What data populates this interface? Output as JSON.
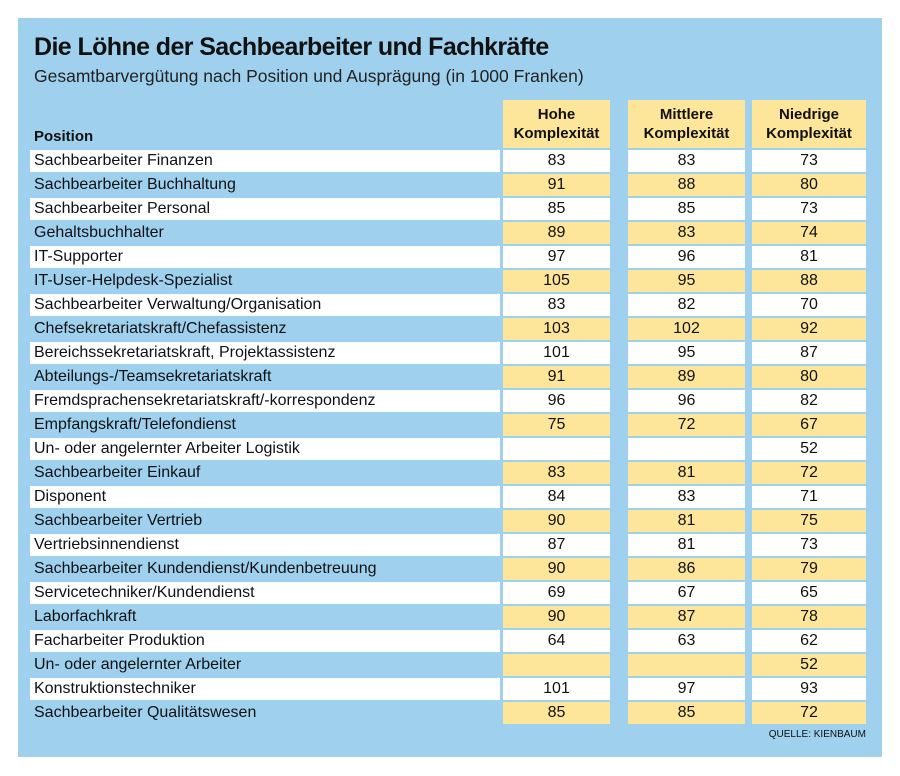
{
  "header": {
    "title": "Die Löhne der Sachbearbeiter und Fachkräfte",
    "subtitle": "Gesamtbarvergütung nach Position und Ausprägung (in 1000 Franken)"
  },
  "table": {
    "columns": [
      "Position",
      "Hohe Komplexität",
      "Mittlere Komplexität",
      "Niedrige Komplexität"
    ],
    "rows": [
      [
        "Sachbearbeiter Finanzen",
        83,
        83,
        73
      ],
      [
        "Sachbearbeiter Buchhaltung",
        91,
        88,
        80
      ],
      [
        "Sachbearbeiter Personal",
        85,
        85,
        73
      ],
      [
        "Gehaltsbuchhalter",
        89,
        83,
        74
      ],
      [
        "IT-Supporter",
        97,
        96,
        81
      ],
      [
        "IT-User-Helpdesk-Spezialist",
        105,
        95,
        88
      ],
      [
        "Sachbearbeiter Verwaltung/Organisation",
        83,
        82,
        70
      ],
      [
        "Chefsekretariatskraft/Chefassistenz",
        103,
        102,
        92
      ],
      [
        "Bereichssekretariatskraft, Projektassistenz",
        101,
        95,
        87
      ],
      [
        "Abteilungs-/Teamsekretariatskraft",
        91,
        89,
        80
      ],
      [
        "Fremdsprachensekretariatskraft/-korrespondenz",
        96,
        96,
        82
      ],
      [
        "Empfangskraft/Telefondienst",
        75,
        72,
        67
      ],
      [
        "Un- oder angelernter Arbeiter Logistik",
        null,
        null,
        52
      ],
      [
        "Sachbearbeiter Einkauf",
        83,
        81,
        72
      ],
      [
        "Disponent",
        84,
        83,
        71
      ],
      [
        "Sachbearbeiter Vertrieb",
        90,
        81,
        75
      ],
      [
        "Vertriebsinnendienst",
        87,
        81,
        73
      ],
      [
        "Sachbearbeiter Kundendienst/Kundenbetreuung",
        90,
        86,
        79
      ],
      [
        "Servicetechniker/Kundendienst",
        69,
        67,
        65
      ],
      [
        "Laborfachkraft",
        90,
        87,
        78
      ],
      [
        "Facharbeiter Produktion",
        64,
        63,
        62
      ],
      [
        "Un- oder angelernter Arbeiter",
        null,
        null,
        52
      ],
      [
        "Konstruktionstechniker",
        101,
        97,
        93
      ],
      [
        "Sachbearbeiter Qualitätswesen",
        85,
        85,
        72
      ]
    ]
  },
  "source": "QUELLE: KIENBAUM"
}
